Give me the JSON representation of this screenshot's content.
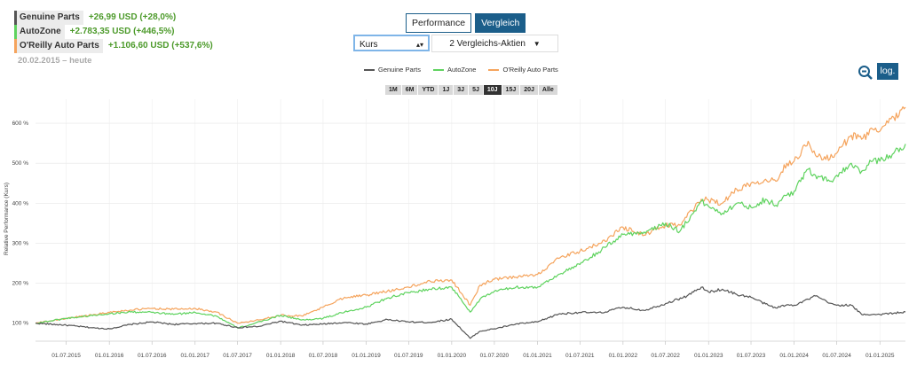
{
  "legend": {
    "rows": [
      {
        "name": "Genuine Parts",
        "perf": "+26,99 USD (+28,0%)",
        "color": "#555555"
      },
      {
        "name": "AutoZone",
        "perf": "+2.783,35 USD (+446,5%)",
        "color": "#5fd35f"
      },
      {
        "name": "O'Reilly Auto Parts",
        "perf": "+1.106,60 USD (+537,6%)",
        "color": "#f5a45d"
      }
    ],
    "date_range": "20.02.2015 – heute"
  },
  "tabs": [
    {
      "label": "Performance"
    },
    {
      "label": "Vergleich"
    }
  ],
  "controls": {
    "kurs_label": "Kurs",
    "compare_label": "2 Vergleichs-Aktien",
    "log_label": "log."
  },
  "ranges": [
    "1M",
    "6M",
    "YTD",
    "1J",
    "3J",
    "5J",
    "10J",
    "15J",
    "20J",
    "Alle"
  ],
  "active_range": "10J",
  "chart_data": {
    "type": "line",
    "ylabel": "Relative Performance (Kurs)",
    "ylim": [
      55,
      660
    ],
    "y_ticks": [
      100,
      200,
      300,
      400,
      500,
      600
    ],
    "y_tick_labels": [
      "100 %",
      "200 %",
      "300 %",
      "400 %",
      "500 %",
      "600 %"
    ],
    "x_ticks": [
      "2015-07-01",
      "2016-01-01",
      "2016-07-01",
      "2017-01-01",
      "2017-07-01",
      "2018-01-01",
      "2018-07-01",
      "2019-01-01",
      "2019-07-01",
      "2020-01-01",
      "2020-07-01",
      "2021-01-01",
      "2021-07-01",
      "2022-01-01",
      "2022-07-01",
      "2023-01-01",
      "2023-07-01",
      "2024-01-01",
      "2024-07-01",
      "2025-01-01"
    ],
    "x_tick_labels": [
      "01.07.2015",
      "01.01.2016",
      "01.07.2016",
      "01.01.2017",
      "01.07.2017",
      "01.01.2018",
      "01.07.2018",
      "01.01.2019",
      "01.07.2019",
      "01.01.2020",
      "01.07.2020",
      "01.01.2021",
      "01.07.2021",
      "01.01.2022",
      "01.07.2022",
      "01.01.2023",
      "01.07.2023",
      "01.01.2024",
      "01.07.2024",
      "01.01.2025"
    ],
    "xlim": [
      "2015-02-20",
      "2025-04-20"
    ],
    "grid": true,
    "series": [
      {
        "name": "Genuine Parts",
        "color": "#555555",
        "points": [
          [
            "2015-02-20",
            100
          ],
          [
            "2015-07-01",
            95
          ],
          [
            "2015-11-01",
            88
          ],
          [
            "2016-01-01",
            86
          ],
          [
            "2016-04-01",
            97
          ],
          [
            "2016-07-01",
            103
          ],
          [
            "2016-10-01",
            97
          ],
          [
            "2017-01-01",
            99
          ],
          [
            "2017-04-01",
            100
          ],
          [
            "2017-07-01",
            89
          ],
          [
            "2017-10-01",
            92
          ],
          [
            "2018-01-01",
            105
          ],
          [
            "2018-04-01",
            95
          ],
          [
            "2018-07-01",
            98
          ],
          [
            "2018-10-01",
            102
          ],
          [
            "2019-01-01",
            98
          ],
          [
            "2019-04-01",
            109
          ],
          [
            "2019-07-01",
            103
          ],
          [
            "2019-10-01",
            102
          ],
          [
            "2020-01-01",
            110
          ],
          [
            "2020-03-20",
            62
          ],
          [
            "2020-05-01",
            80
          ],
          [
            "2020-07-01",
            86
          ],
          [
            "2020-10-01",
            98
          ],
          [
            "2021-01-01",
            103
          ],
          [
            "2021-04-01",
            123
          ],
          [
            "2021-07-01",
            127
          ],
          [
            "2021-10-01",
            126
          ],
          [
            "2022-01-01",
            140
          ],
          [
            "2022-04-01",
            132
          ],
          [
            "2022-07-01",
            149
          ],
          [
            "2022-10-01",
            168
          ],
          [
            "2022-12-01",
            190
          ],
          [
            "2023-01-01",
            178
          ],
          [
            "2023-03-01",
            185
          ],
          [
            "2023-05-01",
            172
          ],
          [
            "2023-07-01",
            165
          ],
          [
            "2023-09-01",
            148
          ],
          [
            "2023-10-15",
            138
          ],
          [
            "2023-12-01",
            146
          ],
          [
            "2024-01-01",
            145
          ],
          [
            "2024-03-01",
            160
          ],
          [
            "2024-04-01",
            168
          ],
          [
            "2024-06-01",
            150
          ],
          [
            "2024-07-01",
            145
          ],
          [
            "2024-09-01",
            145
          ],
          [
            "2024-10-15",
            122
          ],
          [
            "2024-12-01",
            122
          ],
          [
            "2025-01-01",
            122
          ],
          [
            "2025-03-01",
            125
          ],
          [
            "2025-04-20",
            128
          ]
        ]
      },
      {
        "name": "AutoZone",
        "color": "#5fd35f",
        "points": [
          [
            "2015-02-20",
            100
          ],
          [
            "2015-07-01",
            112
          ],
          [
            "2015-11-01",
            120
          ],
          [
            "2016-01-01",
            124
          ],
          [
            "2016-04-01",
            128
          ],
          [
            "2016-07-01",
            127
          ],
          [
            "2016-10-01",
            122
          ],
          [
            "2017-01-01",
            127
          ],
          [
            "2017-04-01",
            118
          ],
          [
            "2017-07-01",
            88
          ],
          [
            "2017-09-01",
            97
          ],
          [
            "2018-01-01",
            120
          ],
          [
            "2018-04-01",
            108
          ],
          [
            "2018-07-01",
            112
          ],
          [
            "2018-10-01",
            128
          ],
          [
            "2019-01-01",
            140
          ],
          [
            "2019-04-01",
            163
          ],
          [
            "2019-07-01",
            176
          ],
          [
            "2019-10-01",
            185
          ],
          [
            "2020-01-01",
            190
          ],
          [
            "2020-03-20",
            128
          ],
          [
            "2020-05-01",
            160
          ],
          [
            "2020-07-01",
            180
          ],
          [
            "2020-10-01",
            190
          ],
          [
            "2021-01-01",
            190
          ],
          [
            "2021-04-01",
            222
          ],
          [
            "2021-07-01",
            247
          ],
          [
            "2021-10-01",
            283
          ],
          [
            "2022-01-01",
            322
          ],
          [
            "2022-04-01",
            328
          ],
          [
            "2022-07-01",
            350
          ],
          [
            "2022-09-01",
            330
          ],
          [
            "2022-12-01",
            405
          ],
          [
            "2023-01-01",
            392
          ],
          [
            "2023-03-01",
            375
          ],
          [
            "2023-05-01",
            400
          ],
          [
            "2023-07-01",
            390
          ],
          [
            "2023-09-01",
            410
          ],
          [
            "2023-10-15",
            395
          ],
          [
            "2023-12-01",
            420
          ],
          [
            "2024-01-01",
            430
          ],
          [
            "2024-03-01",
            485
          ],
          [
            "2024-04-01",
            470
          ],
          [
            "2024-06-01",
            455
          ],
          [
            "2024-07-01",
            470
          ],
          [
            "2024-09-01",
            500
          ],
          [
            "2024-10-15",
            480
          ],
          [
            "2024-12-01",
            505
          ],
          [
            "2025-01-01",
            505
          ],
          [
            "2025-03-01",
            525
          ],
          [
            "2025-04-20",
            548
          ]
        ]
      },
      {
        "name": "O'Reilly Auto Parts",
        "color": "#f5a45d",
        "points": [
          [
            "2015-02-20",
            100
          ],
          [
            "2015-07-01",
            112
          ],
          [
            "2015-11-01",
            122
          ],
          [
            "2016-01-01",
            127
          ],
          [
            "2016-04-01",
            133
          ],
          [
            "2016-07-01",
            137
          ],
          [
            "2016-10-01",
            135
          ],
          [
            "2017-01-01",
            137
          ],
          [
            "2017-04-01",
            128
          ],
          [
            "2017-07-01",
            100
          ],
          [
            "2017-09-01",
            105
          ],
          [
            "2018-01-01",
            120
          ],
          [
            "2018-04-01",
            118
          ],
          [
            "2018-07-01",
            140
          ],
          [
            "2018-10-01",
            165
          ],
          [
            "2019-01-01",
            170
          ],
          [
            "2019-04-01",
            180
          ],
          [
            "2019-07-01",
            190
          ],
          [
            "2019-10-01",
            205
          ],
          [
            "2020-01-01",
            208
          ],
          [
            "2020-03-20",
            145
          ],
          [
            "2020-05-01",
            195
          ],
          [
            "2020-07-01",
            210
          ],
          [
            "2020-10-01",
            215
          ],
          [
            "2021-01-01",
            222
          ],
          [
            "2021-04-01",
            262
          ],
          [
            "2021-07-01",
            280
          ],
          [
            "2021-10-01",
            300
          ],
          [
            "2022-01-01",
            340
          ],
          [
            "2022-04-01",
            320
          ],
          [
            "2022-07-01",
            345
          ],
          [
            "2022-09-01",
            345
          ],
          [
            "2022-12-01",
            410
          ],
          [
            "2023-01-01",
            408
          ],
          [
            "2023-03-01",
            400
          ],
          [
            "2023-05-01",
            435
          ],
          [
            "2023-07-01",
            450
          ],
          [
            "2023-09-01",
            460
          ],
          [
            "2023-10-15",
            455
          ],
          [
            "2023-12-01",
            500
          ],
          [
            "2024-01-01",
            505
          ],
          [
            "2024-03-01",
            555
          ],
          [
            "2024-04-01",
            520
          ],
          [
            "2024-06-01",
            510
          ],
          [
            "2024-07-01",
            525
          ],
          [
            "2024-09-01",
            570
          ],
          [
            "2024-10-15",
            560
          ],
          [
            "2024-12-01",
            585
          ],
          [
            "2025-01-01",
            580
          ],
          [
            "2025-03-01",
            615
          ],
          [
            "2025-04-20",
            640
          ]
        ]
      }
    ]
  }
}
